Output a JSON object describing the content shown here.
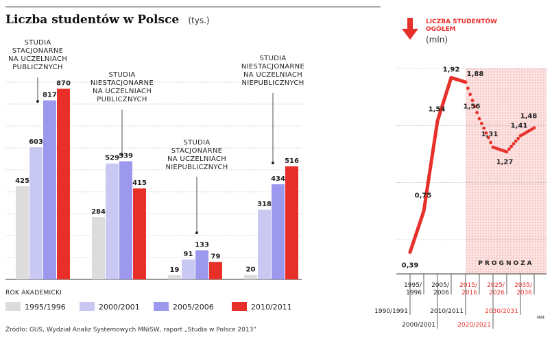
{
  "title": "Liczba studentów w Polsce",
  "title_unit": "(tys.)",
  "legend_heading": "ROK AKADEMICKI",
  "source": "Źródło: GUS, Wydział Analiz Systemowych MNiSW, raport „Studia w Polsce 2013”",
  "credit": "RM",
  "colors": {
    "s1995": "#dcdcdc",
    "s2000": "#c9c8f2",
    "s2005": "#9c98ee",
    "s2010": "#e8302a",
    "accent": "#e8302a",
    "grid": "#999999"
  },
  "chart_data": [
    {
      "type": "bar",
      "title": "Liczba studentów w Polsce",
      "unit": "(tys.)",
      "legend_placement": "bottom",
      "grid": true,
      "ylim": [
        0,
        1000
      ],
      "categories": [
        [
          "STUDIA",
          "STACJONARNE",
          "NA UCZELNIACH",
          "PUBLICZNYCH"
        ],
        [
          "STUDIA",
          "NIESTACJONARNE",
          "NA UCZELNIACH",
          "PUBLICZNYCH"
        ],
        [
          "STUDIA",
          "STACJONARNE",
          "NA UCZELNIACH",
          "NIEPUBLICZNYCH"
        ],
        [
          "STUDIA",
          "NIESTACJONARNE",
          "NA UCZELNIACH",
          "NIEPUBLICZNYCH"
        ]
      ],
      "series": [
        {
          "name": "1995/1996",
          "color": "#dcdcdc",
          "values": [
            425,
            284,
            19,
            20
          ]
        },
        {
          "name": "2000/2001",
          "color": "#c9c8f2",
          "values": [
            603,
            529,
            91,
            318
          ]
        },
        {
          "name": "2005/2006",
          "color": "#9c98ee",
          "values": [
            817,
            539,
            133,
            434
          ]
        },
        {
          "name": "2010/2011",
          "color": "#e8302a",
          "values": [
            870,
            415,
            79,
            516
          ]
        }
      ]
    },
    {
      "type": "line",
      "title": [
        "LICZBA STUDENTÓW",
        "OGÓŁEM"
      ],
      "unit": "(mln)",
      "prognosis_label": "PROGNOZA",
      "ylim": [
        0.2,
        2.0
      ],
      "grid": true,
      "actual": {
        "x": [
          "1990/1991",
          "1995/1996",
          "2000/2001",
          "2005/2006",
          "2010/2011"
        ],
        "y": [
          0.39,
          0.75,
          1.54,
          1.92,
          1.88
        ]
      },
      "forecast": {
        "x": [
          "2010/2011",
          "2015/2016",
          "2020/2021",
          "2025/2026",
          "2030/2031",
          "2035/2036"
        ],
        "y": [
          1.88,
          1.56,
          1.31,
          1.27,
          1.41,
          1.48
        ]
      },
      "x_labels": [
        {
          "text": [
            "1990/1991"
          ],
          "forecast": false
        },
        {
          "text": [
            "1995/",
            "1996"
          ],
          "forecast": false
        },
        {
          "text": [
            "2000/2001"
          ],
          "forecast": false
        },
        {
          "text": [
            "2005/",
            "2006"
          ],
          "forecast": false
        },
        {
          "text": [
            "2010/2011"
          ],
          "forecast": false
        },
        {
          "text": [
            "2015/",
            "2016"
          ],
          "forecast": true
        },
        {
          "text": [
            "2020/2021"
          ],
          "forecast": true
        },
        {
          "text": [
            "2025/",
            "2026"
          ],
          "forecast": true
        },
        {
          "text": [
            "2030/2031"
          ],
          "forecast": true
        },
        {
          "text": [
            "2035/",
            "2036"
          ],
          "forecast": true
        }
      ]
    }
  ]
}
